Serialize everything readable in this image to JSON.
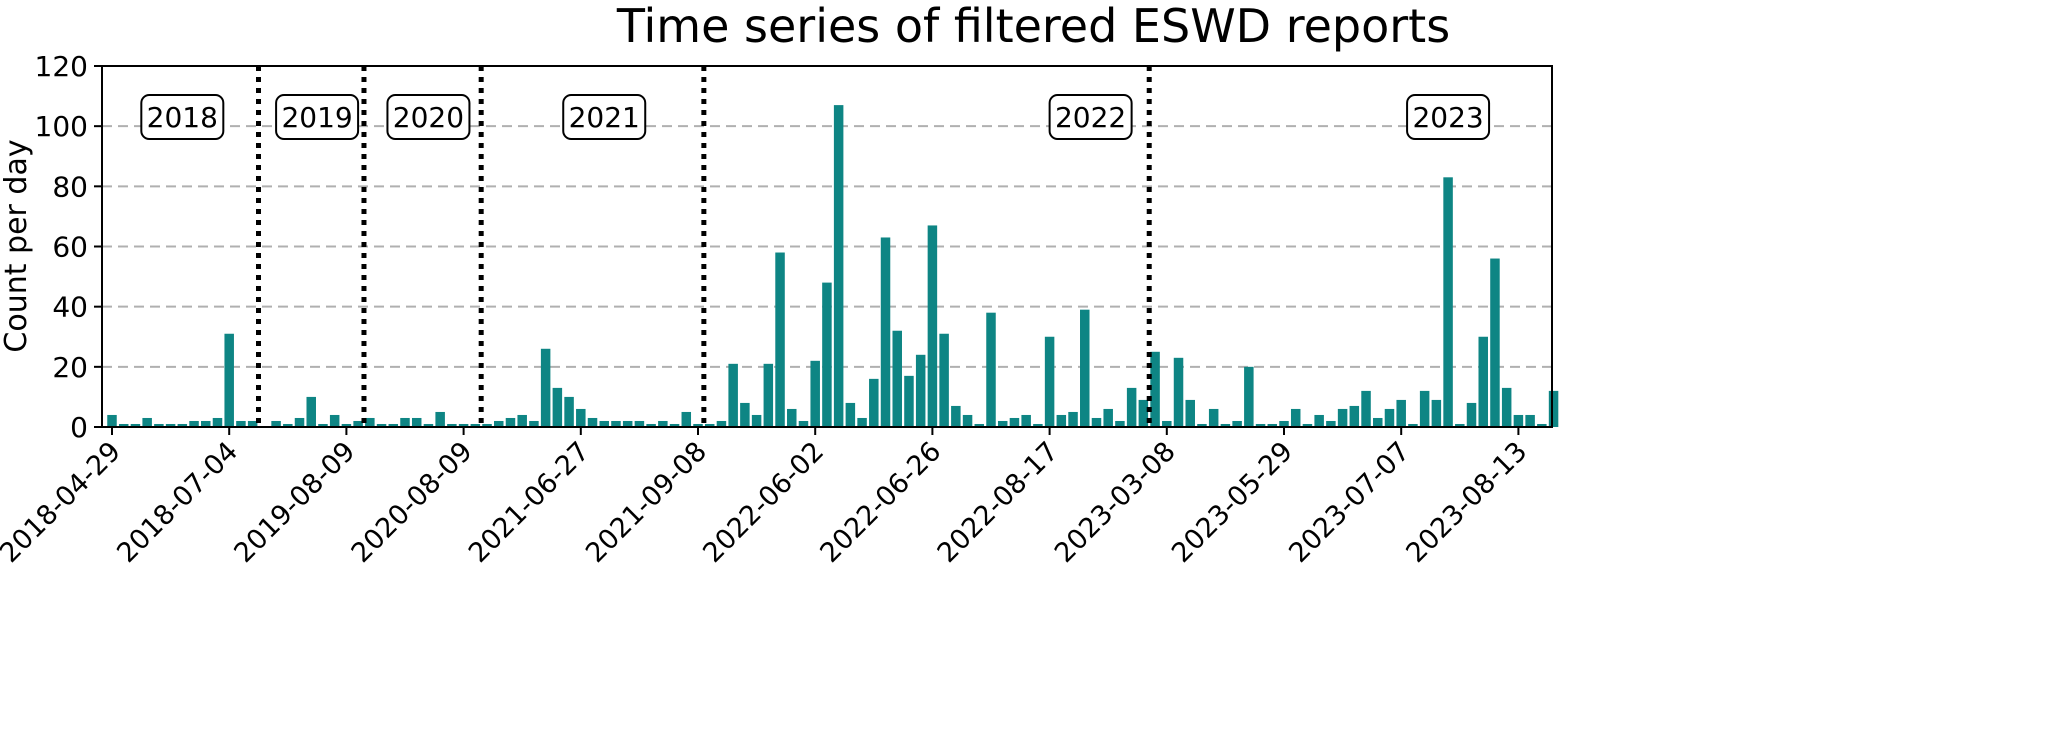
{
  "chart_data": {
    "type": "bar",
    "title": "Time series of filtered ESWD reports",
    "xlabel": "",
    "ylabel": "Count per day",
    "ylim": [
      0,
      120
    ],
    "yticks": [
      0,
      20,
      40,
      60,
      80,
      100,
      120
    ],
    "grid": "horizontal dashed",
    "bar_color": "#0e8584",
    "xtick_labels": [
      "2018-04-29",
      "2018-07-04",
      "2019-08-09",
      "2020-08-09",
      "2021-06-27",
      "2021-09-08",
      "2022-06-02",
      "2022-06-26",
      "2022-08-17",
      "2023-03-08",
      "2023-05-29",
      "2023-07-07",
      "2023-08-13"
    ],
    "xtick_positions": [
      0,
      10,
      20,
      30,
      40,
      50,
      60,
      70,
      80,
      90,
      100,
      110,
      120
    ],
    "year_separators_after_bar": [
      12.5,
      21.5,
      31.5,
      50.5,
      88.5
    ],
    "year_labels": [
      "2018",
      "2019",
      "2020",
      "2021",
      "2022",
      "2023"
    ],
    "year_label_centers": [
      6,
      17.5,
      27,
      42,
      83.5,
      114
    ],
    "values": [
      4,
      1,
      1,
      3,
      1,
      1,
      1,
      2,
      2,
      3,
      31,
      2,
      2,
      0,
      2,
      1,
      3,
      10,
      1,
      4,
      1,
      2,
      3,
      1,
      1,
      3,
      3,
      1,
      5,
      1,
      1,
      1,
      1,
      2,
      3,
      4,
      2,
      26,
      13,
      10,
      6,
      3,
      2,
      2,
      2,
      2,
      1,
      2,
      1,
      5,
      1,
      1,
      2,
      21,
      8,
      4,
      21,
      58,
      6,
      2,
      22,
      48,
      107,
      8,
      3,
      16,
      63,
      32,
      17,
      24,
      67,
      31,
      7,
      4,
      1,
      38,
      2,
      3,
      4,
      1,
      30,
      4,
      5,
      39,
      3,
      6,
      2,
      13,
      9,
      25,
      2,
      23,
      9,
      1,
      6,
      1,
      2,
      20,
      1,
      1,
      2,
      6,
      1,
      4,
      2,
      6,
      7,
      12,
      3,
      6,
      9,
      1,
      12,
      9,
      83,
      1,
      8,
      30,
      56,
      13,
      4,
      4,
      1,
      12
    ]
  }
}
